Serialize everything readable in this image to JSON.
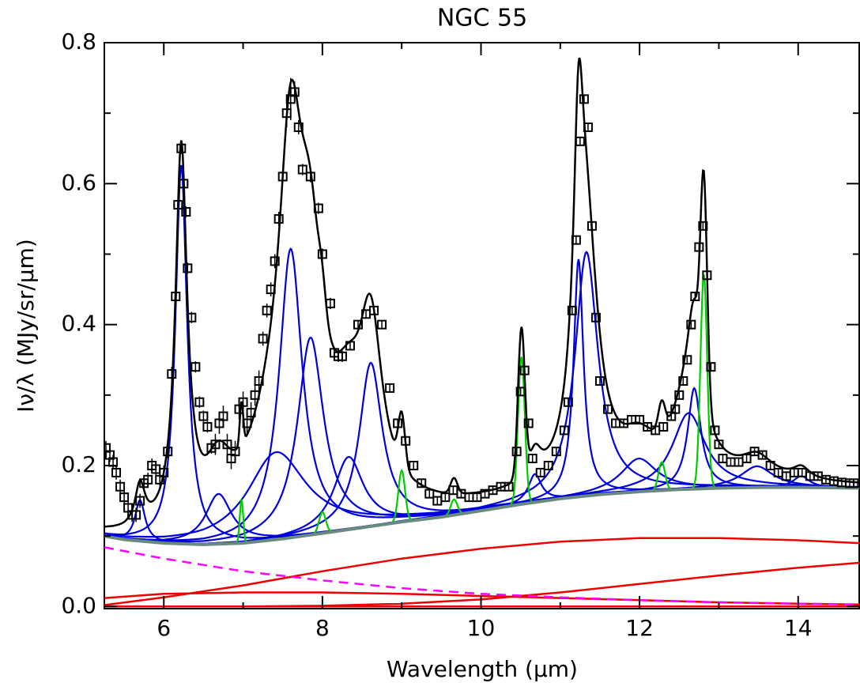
{
  "chart_data": {
    "type": "spectrum-fit",
    "title": "NGC 55",
    "x_label": "Wavelength (μm)",
    "y_label": "Iν/λ (MJy/sr/μm)",
    "xlim": [
      5.25,
      14.77
    ],
    "ylim": [
      -0.003,
      0.8
    ],
    "xticks": [
      6,
      8,
      10,
      12,
      14
    ],
    "x_minor_ticks": [
      7,
      9,
      11,
      13
    ],
    "yticks": [
      {
        "value": 0,
        "label": "0.0"
      },
      {
        "value": 0.2,
        "label": "0.2"
      },
      {
        "value": 0.4,
        "label": "0.4"
      },
      {
        "value": 0.6,
        "label": "0.6"
      },
      {
        "value": 0.8,
        "label": "0.8"
      }
    ],
    "y_minor_ticks": [
      0.1,
      0.3,
      0.5,
      0.7
    ],
    "data": {
      "color": "#000000",
      "x": [
        5.27,
        5.32,
        5.36,
        5.4,
        5.45,
        5.5,
        5.55,
        5.6,
        5.65,
        5.7,
        5.75,
        5.8,
        5.85,
        5.9,
        5.95,
        6.0,
        6.05,
        6.1,
        6.15,
        6.18,
        6.22,
        6.25,
        6.28,
        6.3,
        6.35,
        6.4,
        6.45,
        6.5,
        6.55,
        6.6,
        6.65,
        6.7,
        6.75,
        6.8,
        6.85,
        6.9,
        6.95,
        7.0,
        7.05,
        7.1,
        7.15,
        7.2,
        7.25,
        7.3,
        7.35,
        7.4,
        7.45,
        7.5,
        7.55,
        7.6,
        7.65,
        7.7,
        7.75,
        7.85,
        7.95,
        8.0,
        8.1,
        8.15,
        8.2,
        8.25,
        8.35,
        8.45,
        8.55,
        8.65,
        8.75,
        8.85,
        8.95,
        9.05,
        9.15,
        9.25,
        9.35,
        9.45,
        9.55,
        9.65,
        9.75,
        9.85,
        9.95,
        10.05,
        10.15,
        10.25,
        10.35,
        10.45,
        10.5,
        10.55,
        10.6,
        10.65,
        10.75,
        10.85,
        10.95,
        11.05,
        11.1,
        11.15,
        11.2,
        11.25,
        11.3,
        11.35,
        11.4,
        11.45,
        11.5,
        11.6,
        11.7,
        11.8,
        11.9,
        12.0,
        12.1,
        12.2,
        12.3,
        12.4,
        12.45,
        12.5,
        12.55,
        12.6,
        12.65,
        12.7,
        12.75,
        12.8,
        12.85,
        12.9,
        12.95,
        13.0,
        13.05,
        13.15,
        13.25,
        13.35,
        13.45,
        13.55,
        13.65,
        13.75,
        13.85,
        13.95,
        14.05,
        14.15,
        14.25,
        14.35,
        14.45,
        14.55,
        14.65,
        14.75
      ],
      "values": [
        0.225,
        0.215,
        0.205,
        0.19,
        0.17,
        0.155,
        0.14,
        0.13,
        0.13,
        0.15,
        0.175,
        0.18,
        0.2,
        0.195,
        0.18,
        0.19,
        0.22,
        0.33,
        0.44,
        0.57,
        0.65,
        0.6,
        0.56,
        0.48,
        0.41,
        0.34,
        0.29,
        0.27,
        0.255,
        0.225,
        0.23,
        0.26,
        0.27,
        0.23,
        0.21,
        0.22,
        0.28,
        0.29,
        0.26,
        0.275,
        0.3,
        0.32,
        0.38,
        0.42,
        0.45,
        0.49,
        0.55,
        0.61,
        0.7,
        0.72,
        0.73,
        0.68,
        0.62,
        0.61,
        0.565,
        0.5,
        0.43,
        0.36,
        0.355,
        0.355,
        0.37,
        0.4,
        0.415,
        0.42,
        0.4,
        0.31,
        0.26,
        0.235,
        0.2,
        0.175,
        0.16,
        0.15,
        0.155,
        0.165,
        0.16,
        0.155,
        0.155,
        0.16,
        0.165,
        0.17,
        0.17,
        0.22,
        0.305,
        0.335,
        0.26,
        0.21,
        0.19,
        0.2,
        0.22,
        0.25,
        0.29,
        0.42,
        0.52,
        0.66,
        0.72,
        0.68,
        0.54,
        0.41,
        0.32,
        0.28,
        0.26,
        0.26,
        0.265,
        0.265,
        0.255,
        0.25,
        0.255,
        0.27,
        0.28,
        0.3,
        0.32,
        0.35,
        0.4,
        0.44,
        0.51,
        0.54,
        0.47,
        0.34,
        0.25,
        0.23,
        0.21,
        0.205,
        0.205,
        0.21,
        0.22,
        0.215,
        0.2,
        0.19,
        0.185,
        0.19,
        0.19,
        0.185,
        0.185,
        0.18,
        0.178,
        0.176,
        0.175,
        0.175
      ],
      "errors": [
        0.01,
        0.01,
        0.01,
        0.01,
        0.01,
        0.01,
        0.01,
        0.01,
        0.01,
        0.01,
        0.01,
        0.01,
        0.01,
        0.01,
        0.01,
        0.01,
        0.01,
        0.01,
        0.01,
        0.01,
        0.008,
        0.008,
        0.008,
        0.008,
        0.008,
        0.008,
        0.008,
        0.008,
        0.008,
        0.008,
        0.015,
        0.015,
        0.015,
        0.015,
        0.015,
        0.015,
        0.015,
        0.015,
        0.015,
        0.015,
        0.015,
        0.015,
        0.01,
        0.01,
        0.01,
        0.01,
        0.01,
        0.01,
        0.02,
        0.03,
        0.015,
        0.01,
        0.008,
        0.008,
        0.008,
        0.008,
        0.008,
        0.008,
        0.008,
        0.008,
        0.006,
        0.006,
        0.006,
        0.006,
        0.006,
        0.006,
        0.006,
        0.006,
        0.006,
        0.006,
        0.006,
        0.006,
        0.006,
        0.006,
        0.006,
        0.006,
        0.006,
        0.006,
        0.006,
        0.006,
        0.006,
        0.006,
        0.006,
        0.006,
        0.006,
        0.006,
        0.006,
        0.006,
        0.006,
        0.006,
        0.006,
        0.006,
        0.006,
        0.006,
        0.006,
        0.006,
        0.006,
        0.006,
        0.006,
        0.006,
        0.006,
        0.006,
        0.006,
        0.006,
        0.006,
        0.006,
        0.006,
        0.006,
        0.006,
        0.006,
        0.006,
        0.006,
        0.006,
        0.006,
        0.006,
        0.006,
        0.006,
        0.006,
        0.006,
        0.006,
        0.006,
        0.006,
        0.006,
        0.006,
        0.006,
        0.006,
        0.006,
        0.006,
        0.006,
        0.006,
        0.006,
        0.006,
        0.006,
        0.006,
        0.006,
        0.006,
        0.006,
        0.006
      ]
    },
    "continuum": {
      "color": "#6a8a80",
      "x": [
        5.25,
        5.5,
        6,
        6.5,
        7,
        7.5,
        8,
        8.5,
        9,
        9.5,
        10,
        10.5,
        11,
        11.5,
        12,
        12.5,
        13,
        13.5,
        14,
        14.77
      ],
      "values": [
        0.1,
        0.095,
        0.09,
        0.088,
        0.09,
        0.096,
        0.104,
        0.112,
        0.12,
        0.127,
        0.136,
        0.145,
        0.153,
        0.159,
        0.163,
        0.166,
        0.168,
        0.169,
        0.169,
        0.168
      ]
    },
    "components": [
      {
        "color": "#ee0000",
        "x": [
          5.25,
          6,
          7,
          8,
          9,
          10,
          11,
          12,
          13,
          14,
          14.77
        ],
        "values": [
          0.002,
          0.013,
          0.03,
          0.05,
          0.068,
          0.082,
          0.092,
          0.097,
          0.097,
          0.094,
          0.09
        ]
      },
      {
        "color": "#ee0000",
        "x": [
          5.25,
          7,
          8,
          9,
          10,
          11,
          12,
          13,
          14,
          14.77
        ],
        "values": [
          0,
          0,
          0.001,
          0.004,
          0.01,
          0.02,
          0.032,
          0.044,
          0.055,
          0.062
        ]
      },
      {
        "color": "#ee0000",
        "x": [
          5.25,
          6,
          7,
          8,
          9,
          10,
          11,
          12,
          13,
          14,
          14.77
        ],
        "values": [
          0.012,
          0.018,
          0.02,
          0.02,
          0.018,
          0.015,
          0.012,
          0.009,
          0.006,
          0.004,
          0.003
        ]
      },
      {
        "color": "#ee0000",
        "x": [
          5.25,
          14.77
        ],
        "values": [
          0,
          0
        ]
      }
    ],
    "extinction": {
      "color": "#ff00ff",
      "dashed": true,
      "x": [
        5.25,
        6,
        7,
        8,
        9,
        10,
        11,
        12,
        13,
        14,
        14.77
      ],
      "values": [
        0.084,
        0.068,
        0.05,
        0.037,
        0.026,
        0.018,
        0.013,
        0.009,
        0.006,
        0.004,
        0.003
      ]
    },
    "drude": {
      "color": "#0000dd",
      "center": [
        5.7,
        6.22,
        6.69,
        7.42,
        7.6,
        7.85,
        8.33,
        8.61,
        10.68,
        11.23,
        11.33,
        11.99,
        12.62,
        12.69,
        13.48,
        14.04
      ],
      "amp": [
        0.058,
        0.537,
        0.071,
        0.124,
        0.41,
        0.28,
        0.103,
        0.232,
        0.04,
        0.337,
        0.346,
        0.047,
        0.108,
        0.143,
        0.03,
        0.016
      ],
      "fwhm": [
        0.15,
        0.18,
        0.4,
        0.9,
        0.35,
        0.4,
        0.45,
        0.35,
        0.2,
        0.15,
        0.35,
        0.55,
        0.5,
        0.2,
        0.5,
        0.25
      ]
    },
    "lines": {
      "color": "#00cc00",
      "center": [
        6.98,
        8.0,
        9.0,
        9.66,
        10.51,
        12.28,
        12.81
      ],
      "amp": [
        0.062,
        0.03,
        0.073,
        0.022,
        0.209,
        0.04,
        0.304
      ],
      "fwhm": [
        0.05,
        0.1,
        0.1,
        0.1,
        0.1,
        0.1,
        0.1
      ]
    },
    "fit_color": "#000000"
  }
}
